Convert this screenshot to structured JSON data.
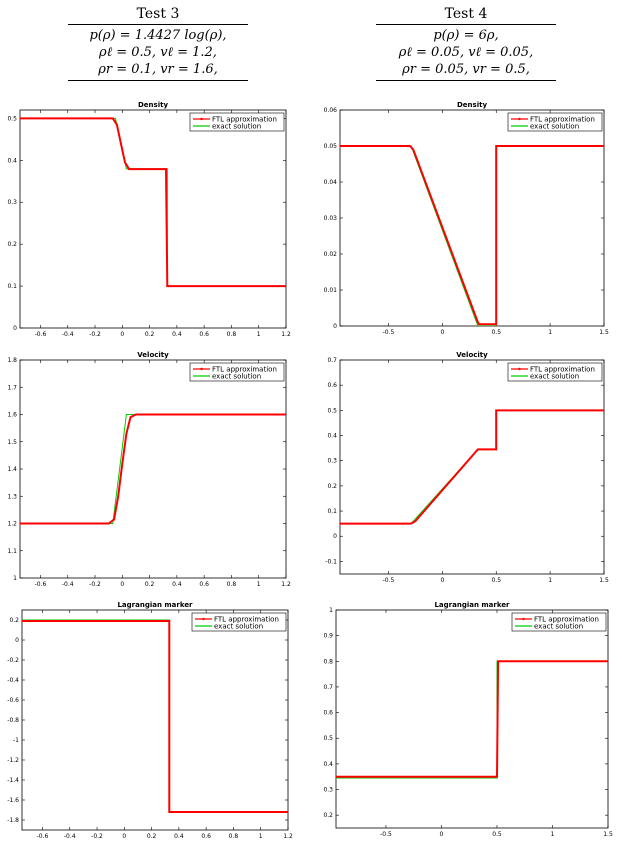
{
  "headers": [
    {
      "title": "Test 3",
      "lines": [
        "p(ρ) = 1.4427 log(ρ),",
        "ρℓ = 0.5,  vℓ = 1.2,",
        "ρr = 0.1,  vr = 1.6,"
      ]
    },
    {
      "title": "Test 4",
      "lines": [
        "p(ρ) = 6ρ,",
        "ρℓ = 0.05,  vℓ = 0.05,",
        "ρr = 0.05,  vr = 0.5,"
      ]
    }
  ],
  "colors": {
    "ftl": "#ff0000",
    "exact": "#00cc00",
    "axis": "#000000"
  },
  "chart_data": [
    {
      "type": "line",
      "title": "Density",
      "legend": "top-right",
      "xlim": [
        -0.75,
        1.2
      ],
      "ylim": [
        0,
        0.52
      ],
      "xticks": [
        -0.6,
        -0.4,
        -0.2,
        0,
        0.2,
        0.4,
        0.6,
        0.8,
        1,
        1.2
      ],
      "xtick_labels": [
        "-0.6",
        "-0.4",
        "-0.2",
        "0",
        "0.2",
        "0.4",
        "0.6",
        "0.8",
        "1",
        "1.2"
      ],
      "yticks": [
        0,
        0.1,
        0.2,
        0.3,
        0.4,
        0.5
      ],
      "ytick_labels": [
        "0",
        "0.1",
        "0.2",
        "0.3",
        "0.4",
        "0.5"
      ],
      "series": [
        {
          "name": "FTL approximation",
          "color": "#ff0000",
          "x": [
            -0.75,
            -0.07,
            -0.04,
            -0.01,
            0.02,
            0.05,
            0.32,
            0.325,
            0.33,
            1.2
          ],
          "y": [
            0.5,
            0.5,
            0.485,
            0.44,
            0.395,
            0.379,
            0.379,
            0.25,
            0.1,
            0.1
          ]
        },
        {
          "name": "exact solution",
          "color": "#00cc00",
          "x": [
            -0.75,
            -0.05,
            0.03,
            0.33,
            0.33,
            1.2
          ],
          "y": [
            0.5,
            0.5,
            0.38,
            0.38,
            0.1,
            0.1
          ]
        }
      ]
    },
    {
      "type": "line",
      "title": "Density",
      "legend": "top-right",
      "xlim": [
        -0.95,
        1.5
      ],
      "ylim": [
        0,
        0.06
      ],
      "xticks": [
        -0.5,
        0,
        0.5,
        1,
        1.5
      ],
      "xtick_labels": [
        "-0.5",
        "0",
        "0.5",
        "1",
        "1.5"
      ],
      "yticks": [
        0,
        0.01,
        0.02,
        0.03,
        0.04,
        0.05,
        0.06
      ],
      "ytick_labels": [
        "0",
        "0.01",
        "0.02",
        "0.03",
        "0.04",
        "0.05",
        "0.06"
      ],
      "series": [
        {
          "name": "FTL approximation",
          "color": "#ff0000",
          "x": [
            -0.95,
            -0.3,
            -0.27,
            0.33,
            0.34,
            0.49,
            0.5,
            0.5,
            1.5
          ],
          "y": [
            0.05,
            0.05,
            0.049,
            0.001,
            0.0005,
            0.0005,
            0.0005,
            0.05,
            0.05
          ]
        },
        {
          "name": "exact solution",
          "color": "#00cc00",
          "x": [
            -0.95,
            -0.29,
            0.33,
            0.5,
            0.5,
            1.5
          ],
          "y": [
            0.05,
            0.05,
            0,
            0,
            0.05,
            0.05
          ]
        }
      ]
    },
    {
      "type": "line",
      "title": "Velocity",
      "legend": "top-right",
      "xlim": [
        -0.75,
        1.2
      ],
      "ylim": [
        1,
        1.8
      ],
      "xticks": [
        -0.6,
        -0.4,
        -0.2,
        0,
        0.2,
        0.4,
        0.6,
        0.8,
        1,
        1.2
      ],
      "xtick_labels": [
        "-0.6",
        "-0.4",
        "-0.2",
        "0",
        "0.2",
        "0.4",
        "0.6",
        "0.8",
        "1",
        "1.2"
      ],
      "yticks": [
        1,
        1.1,
        1.2,
        1.3,
        1.4,
        1.5,
        1.6,
        1.7,
        1.8
      ],
      "ytick_labels": [
        "1",
        "1.1",
        "1.2",
        "1.3",
        "1.4",
        "1.5",
        "1.6",
        "1.7",
        "1.8"
      ],
      "series": [
        {
          "name": "FTL approximation",
          "color": "#ff0000",
          "x": [
            -0.75,
            -0.1,
            -0.06,
            -0.03,
            0,
            0.03,
            0.06,
            0.1,
            1.2
          ],
          "y": [
            1.2,
            1.2,
            1.215,
            1.3,
            1.42,
            1.53,
            1.59,
            1.6,
            1.6
          ]
        },
        {
          "name": "exact solution",
          "color": "#00cc00",
          "x": [
            -0.75,
            -0.07,
            -0.07,
            0.03,
            0.03,
            1.2
          ],
          "y": [
            1.2,
            1.2,
            1.2,
            1.6,
            1.6,
            1.6
          ]
        }
      ]
    },
    {
      "type": "line",
      "title": "Velocity",
      "legend": "top-right",
      "xlim": [
        -0.95,
        1.5
      ],
      "ylim": [
        -0.15,
        0.7
      ],
      "xticks": [
        -0.5,
        0,
        0.5,
        1,
        1.5
      ],
      "xtick_labels": [
        "-0.5",
        "0",
        "0.5",
        "1",
        "1.5"
      ],
      "yticks": [
        -0.1,
        0,
        0.1,
        0.2,
        0.3,
        0.4,
        0.5,
        0.6,
        0.7
      ],
      "ytick_labels": [
        "-0.1",
        "0",
        "0.1",
        "0.2",
        "0.3",
        "0.4",
        "0.5",
        "0.6",
        "0.7"
      ],
      "series": [
        {
          "name": "FTL approximation",
          "color": "#ff0000",
          "x": [
            -0.95,
            -0.29,
            -0.25,
            0.33,
            0.34,
            0.5,
            0.5,
            1.5
          ],
          "y": [
            0.05,
            0.05,
            0.06,
            0.345,
            0.345,
            0.345,
            0.5,
            0.5
          ]
        },
        {
          "name": "exact solution",
          "color": "#00cc00",
          "x": [
            -0.95,
            -0.29,
            0.33,
            0.5,
            0.5,
            1.5
          ],
          "y": [
            0.05,
            0.05,
            0.345,
            0.345,
            0.5,
            0.5
          ]
        }
      ]
    },
    {
      "type": "line",
      "title": "Lagrangian marker",
      "legend": "top-right",
      "xlim": [
        -0.75,
        1.2
      ],
      "ylim": [
        -1.9,
        0.3
      ],
      "xticks": [
        -0.6,
        -0.4,
        -0.2,
        0,
        0.2,
        0.4,
        0.6,
        0.8,
        1,
        1.2
      ],
      "xtick_labels": [
        "-0.6",
        "-0.4",
        "-0.2",
        "0",
        "0.2",
        "0.4",
        "0.6",
        "0.8",
        "1",
        "1.2"
      ],
      "yticks": [
        0.2,
        0,
        -0.2,
        -0.4,
        -0.6,
        -0.8,
        -1,
        -1.2,
        -1.4,
        -1.6,
        -1.8
      ],
      "ytick_labels": [
        "0.2",
        "0",
        "-0.2",
        "-0.4",
        "-0.6",
        "-0.8",
        "-1",
        "-1.2",
        "-1.4",
        "-1.6",
        "-1.8"
      ],
      "series": [
        {
          "name": "FTL approximation",
          "color": "#ff0000",
          "x": [
            -0.75,
            0.33,
            0.33,
            1.2
          ],
          "y": [
            0.19,
            0.19,
            -1.72,
            -1.72
          ]
        },
        {
          "name": "exact solution",
          "color": "#00cc00",
          "x": [
            -0.75,
            0.33,
            0.33,
            1.2
          ],
          "y": [
            0.2,
            0.2,
            -1.72,
            -1.72
          ]
        }
      ]
    },
    {
      "type": "line",
      "title": "Lagrangian marker",
      "legend": "top-right",
      "xlim": [
        -0.95,
        1.5
      ],
      "ylim": [
        0.15,
        1
      ],
      "xticks": [
        -0.5,
        0,
        0.5,
        1,
        1.5
      ],
      "xtick_labels": [
        "-0.5",
        "0",
        "0.5",
        "1",
        "1.5"
      ],
      "yticks": [
        0.2,
        0.3,
        0.4,
        0.5,
        0.6,
        0.7,
        0.8,
        0.9,
        1
      ],
      "ytick_labels": [
        "0.2",
        "0.3",
        "0.4",
        "0.5",
        "0.6",
        "0.7",
        "0.8",
        "0.9",
        "1"
      ],
      "series": [
        {
          "name": "FTL approximation",
          "color": "#ff0000",
          "x": [
            -0.95,
            0.5,
            0.51,
            1.5
          ],
          "y": [
            0.35,
            0.35,
            0.8,
            0.8
          ]
        },
        {
          "name": "exact solution",
          "color": "#00cc00",
          "x": [
            -0.95,
            0.5,
            0.5,
            1.5
          ],
          "y": [
            0.345,
            0.345,
            0.8,
            0.8
          ]
        }
      ]
    }
  ]
}
